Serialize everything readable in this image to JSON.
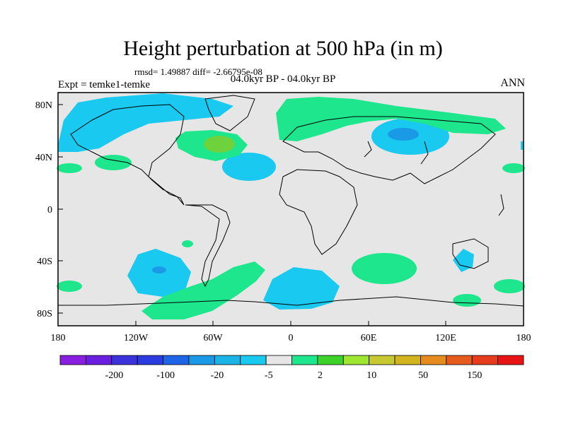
{
  "header": {
    "title": "Height perturbation at 500 hPa (in m)",
    "stats": "rmsd= 1.49887 diff= -2.66795e-08",
    "experiment": "Expt = temke1-temke",
    "period": "04.0kyr BP - 04.0kyr BP",
    "season": "ANN"
  },
  "axes": {
    "lon_ticks": [
      "180",
      "120W",
      "60W",
      "0",
      "60E",
      "120E",
      "180"
    ],
    "lat_ticks": [
      "80N",
      "40N",
      "0",
      "40S",
      "80S"
    ]
  },
  "colorbar": {
    "colors": [
      "#8a1ee0",
      "#6a1ee0",
      "#3c32dc",
      "#2a3ce0",
      "#1e64e6",
      "#1a9ae6",
      "#1ab4e6",
      "#19c9ef",
      "#e6e6e6",
      "#1ee68c",
      "#3cd22a",
      "#9ee632",
      "#c8c832",
      "#d2b41e",
      "#e68c1e",
      "#e65a1e",
      "#e63c1e",
      "#e61414"
    ],
    "labels": [
      "-200",
      "-100",
      "-20",
      "-5",
      "2",
      "10",
      "50",
      "150"
    ]
  },
  "map": {
    "background_color": "#e6e6e6",
    "positive_color": "#1ee68c",
    "positive_strong_color": "#6ed23c",
    "negative_color": "#19c9ef",
    "negative_strong_color": "#1a9ae6"
  }
}
